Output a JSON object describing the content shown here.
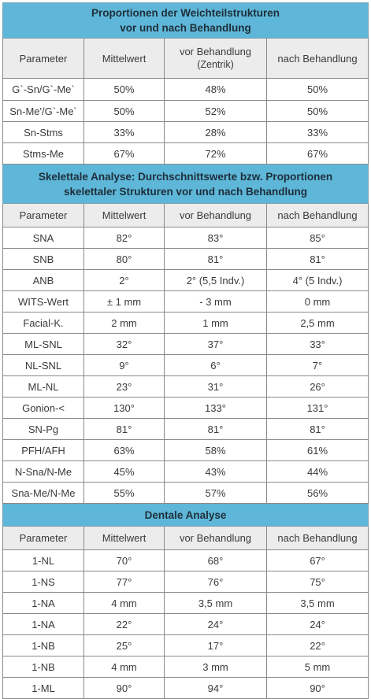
{
  "table": {
    "columns": [
      "Parameter",
      "Mittelwert",
      "vor Behandlung",
      "nach Behandlung"
    ],
    "vor_behandlung_sub": "(Zentrik)",
    "sections": [
      {
        "title_line1": "Proportionen der Weichteilstrukturen",
        "title_line2": "vor und nach Behandlung",
        "rows": [
          [
            "G`-Sn/G`-Me`",
            "50%",
            "48%",
            "50%"
          ],
          [
            "Sn-Me'/G`-Me`",
            "50%",
            "52%",
            "50%"
          ],
          [
            "Sn-Stms",
            "33%",
            "28%",
            "33%"
          ],
          [
            "Stms-Me",
            "67%",
            "72%",
            "67%"
          ]
        ]
      },
      {
        "title_line1": "Skelettale Analyse: Durchschnittswerte bzw. Proportionen",
        "title_line2": "skelettaler Strukturen vor und nach Behandlung",
        "rows": [
          [
            "SNA",
            "82°",
            "83°",
            "85°"
          ],
          [
            "SNB",
            "80°",
            "81°",
            "81°"
          ],
          [
            "ANB",
            "2°",
            "2° (5,5 Indv.)",
            "4° (5 Indv.)"
          ],
          [
            "WITS-Wert",
            "± 1 mm",
            "- 3 mm",
            "0 mm"
          ],
          [
            "Facial-K.",
            "2 mm",
            "1 mm",
            "2,5 mm"
          ],
          [
            "ML-SNL",
            "32°",
            "37°",
            "33°"
          ],
          [
            "NL-SNL",
            "9°",
            "6°",
            "7°"
          ],
          [
            "ML-NL",
            "23°",
            "31°",
            "26°"
          ],
          [
            "Gonion-<",
            "130°",
            "133°",
            "131°"
          ],
          [
            "SN-Pg",
            "81°",
            "81°",
            "81°"
          ],
          [
            "PFH/AFH",
            "63%",
            "58%",
            "61%"
          ],
          [
            "N-Sna/N-Me",
            "45%",
            "43%",
            "44%"
          ],
          [
            "Sna-Me/N-Me",
            "55%",
            "57%",
            "56%"
          ]
        ]
      },
      {
        "title_line1": "Dentale Analyse",
        "rows": [
          [
            "1-NL",
            "70°",
            "68°",
            "67°"
          ],
          [
            "1-NS",
            "77°",
            "76°",
            "75°"
          ],
          [
            "1-NA",
            "4 mm",
            "3,5 mm",
            "3,5 mm"
          ],
          [
            "1-NA",
            "22°",
            "24°",
            "24°"
          ],
          [
            "1-NB",
            "25°",
            "17°",
            "22°"
          ],
          [
            "1-NB",
            "4 mm",
            "3 mm",
            "5 mm"
          ],
          [
            "1-ML",
            "90°",
            "94°",
            "90°"
          ]
        ]
      }
    ]
  }
}
